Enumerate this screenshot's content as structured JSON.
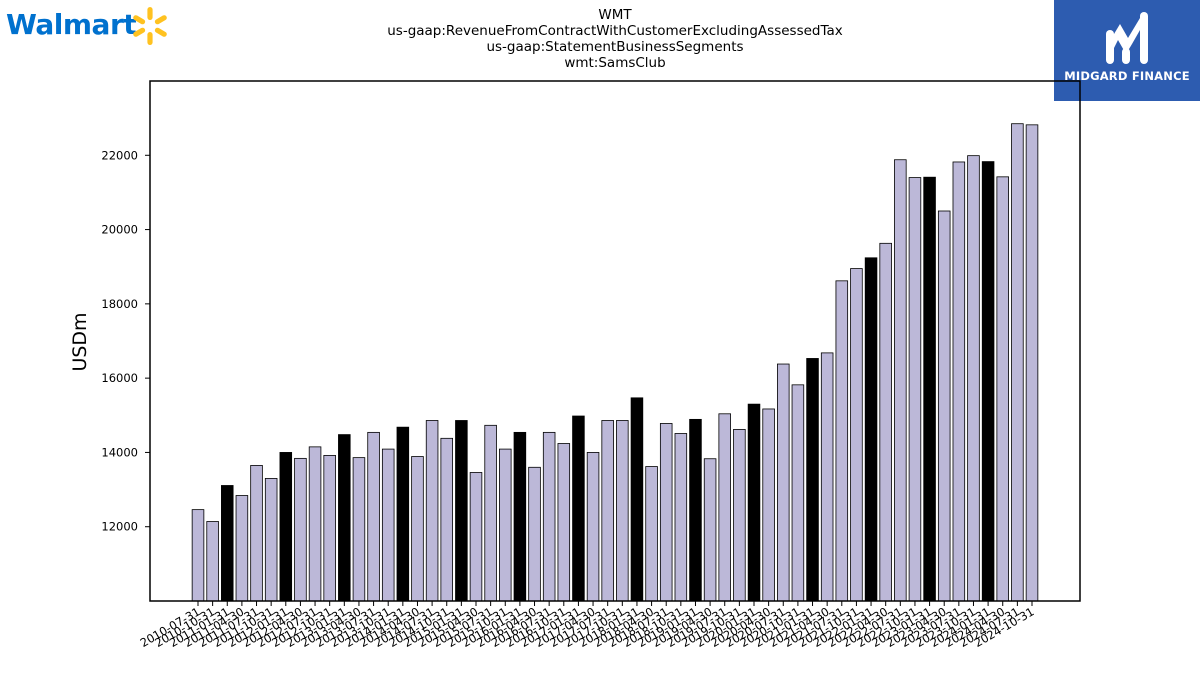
{
  "brand": {
    "left_logo": "Walmart",
    "right_logo": "MIDGARD FINANCE",
    "walmart_blue": "#0071ce",
    "walmart_yellow": "#ffc220",
    "midgard_blue": "#2d5cb0"
  },
  "chart_data": {
    "type": "bar",
    "title_lines": [
      "WMT",
      "us-gaap:RevenueFromContractWithCustomerExcludingAssessedTax",
      "us-gaap:StatementBusinessSegments",
      "wmt:SamsClub"
    ],
    "xlabel": "",
    "ylabel": "USDm",
    "ylim": [
      10000,
      24000
    ],
    "yticks": [
      12000,
      14000,
      16000,
      18000,
      20000,
      22000
    ],
    "grid": false,
    "colors": {
      "quarter": "#bcb8d8",
      "fiscal_year_end": "#000000",
      "edge": "#000000"
    },
    "categories": [
      "2010-07-31",
      "2010-10-31",
      "2011-01-31",
      "2011-04-30",
      "2011-07-31",
      "2011-10-31",
      "2012-01-31",
      "2012-04-30",
      "2012-07-31",
      "2012-10-31",
      "2013-01-31",
      "2013-04-30",
      "2013-07-31",
      "2013-10-31",
      "2014-01-31",
      "2014-04-30",
      "2014-07-31",
      "2014-10-31",
      "2015-01-31",
      "2015-04-30",
      "2015-07-31",
      "2015-10-31",
      "2016-01-31",
      "2016-04-30",
      "2016-07-31",
      "2016-10-31",
      "2017-01-31",
      "2017-04-30",
      "2017-07-31",
      "2017-10-31",
      "2018-01-31",
      "2018-04-30",
      "2018-07-31",
      "2018-10-31",
      "2019-01-31",
      "2019-04-30",
      "2019-07-31",
      "2019-10-31",
      "2020-01-31",
      "2020-04-30",
      "2020-07-31",
      "2020-10-31",
      "2021-01-31",
      "2021-04-30",
      "2021-07-31",
      "2021-10-31",
      "2022-01-31",
      "2022-04-30",
      "2022-07-31",
      "2022-10-31",
      "2023-01-31",
      "2023-04-30",
      "2023-07-31",
      "2023-10-31",
      "2024-01-31",
      "2024-04-30",
      "2024-07-31",
      "2024-10-31"
    ],
    "values": [
      12460,
      12140,
      13110,
      12840,
      13650,
      13300,
      14000,
      13840,
      14150,
      13920,
      14480,
      13860,
      14540,
      14090,
      14680,
      13890,
      14860,
      14380,
      14860,
      13460,
      14730,
      14090,
      14540,
      13600,
      14540,
      14240,
      14980,
      14000,
      14860,
      14860,
      15470,
      13620,
      14780,
      14510,
      14890,
      13830,
      15040,
      14620,
      15300,
      15170,
      16380,
      15820,
      16530,
      16680,
      18620,
      18950,
      19240,
      19630,
      21880,
      21400,
      21410,
      20500,
      21820,
      21990,
      21830,
      21420,
      22850,
      22820
    ],
    "fiscal_year_end_flags": [
      false,
      false,
      true,
      false,
      false,
      false,
      true,
      false,
      false,
      false,
      true,
      false,
      false,
      false,
      true,
      false,
      false,
      false,
      true,
      false,
      false,
      false,
      true,
      false,
      false,
      false,
      true,
      false,
      false,
      false,
      true,
      false,
      false,
      false,
      true,
      false,
      false,
      false,
      true,
      false,
      false,
      false,
      true,
      false,
      false,
      false,
      true,
      false,
      false,
      false,
      true,
      false,
      false,
      false,
      true,
      false,
      false,
      false
    ]
  }
}
